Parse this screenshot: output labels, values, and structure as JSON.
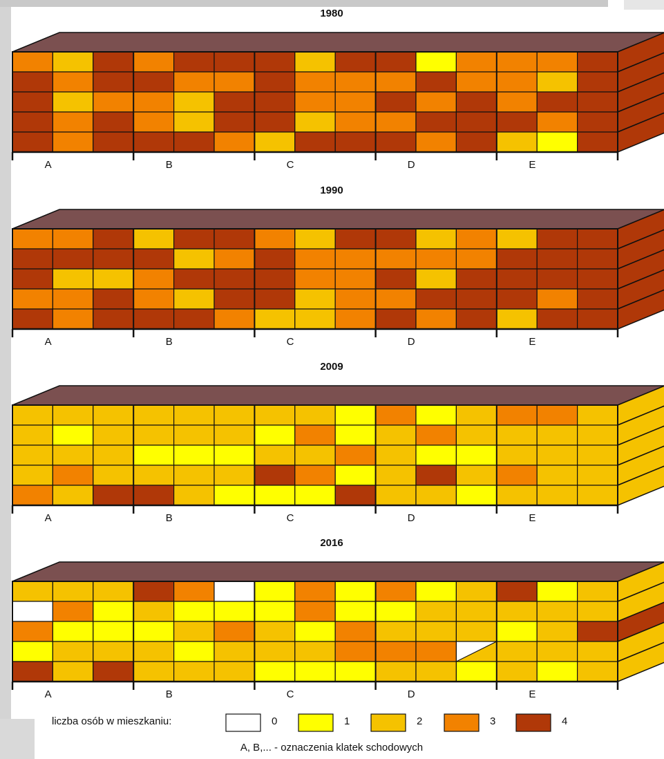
{
  "colors": {
    "0": "#ffffff",
    "1": "#ffff00",
    "2": "#f5c200",
    "3": "#f28200",
    "4": "#b03808",
    "roof": "#7b5050",
    "edge": "#111111"
  },
  "buildings": [
    {
      "year": "1980",
      "rows": [
        [
          3,
          2,
          4,
          3,
          4,
          4,
          4,
          2,
          4,
          4,
          1,
          3,
          3,
          3,
          4
        ],
        [
          4,
          3,
          4,
          4,
          3,
          3,
          4,
          3,
          3,
          3,
          4,
          3,
          3,
          2,
          4
        ],
        [
          4,
          2,
          3,
          3,
          2,
          4,
          4,
          3,
          3,
          4,
          3,
          4,
          3,
          4,
          4
        ],
        [
          4,
          3,
          4,
          3,
          2,
          4,
          4,
          2,
          3,
          3,
          4,
          4,
          4,
          3,
          4
        ],
        [
          4,
          3,
          4,
          4,
          4,
          3,
          2,
          4,
          4,
          4,
          3,
          4,
          2,
          1,
          4
        ]
      ],
      "side": 4
    },
    {
      "year": "1990",
      "rows": [
        [
          3,
          3,
          4,
          2,
          4,
          4,
          3,
          2,
          4,
          4,
          2,
          3,
          2,
          4,
          4
        ],
        [
          4,
          4,
          4,
          4,
          2,
          3,
          4,
          3,
          3,
          3,
          3,
          3,
          4,
          4,
          4
        ],
        [
          4,
          2,
          2,
          3,
          4,
          4,
          4,
          3,
          3,
          4,
          2,
          4,
          4,
          4,
          4
        ],
        [
          3,
          3,
          4,
          3,
          2,
          4,
          4,
          2,
          3,
          3,
          4,
          4,
          4,
          3,
          4
        ],
        [
          4,
          3,
          4,
          4,
          4,
          3,
          2,
          2,
          3,
          4,
          3,
          4,
          2,
          4,
          4
        ]
      ],
      "side": 4
    },
    {
      "year": "2009",
      "rows": [
        [
          2,
          2,
          2,
          2,
          2,
          2,
          2,
          2,
          1,
          3,
          1,
          2,
          3,
          3,
          2
        ],
        [
          2,
          1,
          2,
          2,
          2,
          2,
          1,
          3,
          1,
          2,
          3,
          2,
          2,
          2,
          2
        ],
        [
          2,
          2,
          2,
          1,
          1,
          1,
          2,
          2,
          3,
          2,
          1,
          1,
          2,
          2,
          2
        ],
        [
          2,
          3,
          2,
          2,
          2,
          2,
          4,
          3,
          1,
          2,
          4,
          2,
          3,
          2,
          2
        ],
        [
          3,
          2,
          4,
          4,
          2,
          1,
          1,
          1,
          4,
          2,
          2,
          1,
          2,
          2,
          2
        ]
      ],
      "side": 2
    },
    {
      "year": "2016",
      "rows": [
        [
          2,
          2,
          2,
          4,
          3,
          0,
          1,
          3,
          1,
          3,
          1,
          2,
          4,
          1,
          2
        ],
        [
          0,
          3,
          1,
          2,
          1,
          1,
          1,
          3,
          1,
          1,
          2,
          2,
          2,
          2,
          2
        ],
        [
          3,
          1,
          1,
          1,
          2,
          3,
          2,
          1,
          3,
          2,
          2,
          2,
          1,
          2,
          4
        ],
        [
          1,
          2,
          2,
          2,
          1,
          2,
          2,
          2,
          3,
          3,
          3,
          "0/2",
          2,
          2,
          2
        ],
        [
          4,
          2,
          4,
          2,
          2,
          2,
          1,
          1,
          1,
          2,
          2,
          1,
          2,
          1,
          2
        ]
      ],
      "side_floors": [
        2,
        2,
        4,
        2,
        2
      ]
    }
  ],
  "block_labels": [
    "A",
    "B",
    "C",
    "D",
    "E"
  ],
  "legend": {
    "title": "liczba osób w mieszkaniu:",
    "items": [
      {
        "value": 0,
        "label": "0"
      },
      {
        "value": 1,
        "label": "1"
      },
      {
        "value": 2,
        "label": "2"
      },
      {
        "value": 3,
        "label": "3"
      },
      {
        "value": 4,
        "label": "4"
      }
    ]
  },
  "footnote": "A, B,... - oznaczenia klatek schodowych"
}
